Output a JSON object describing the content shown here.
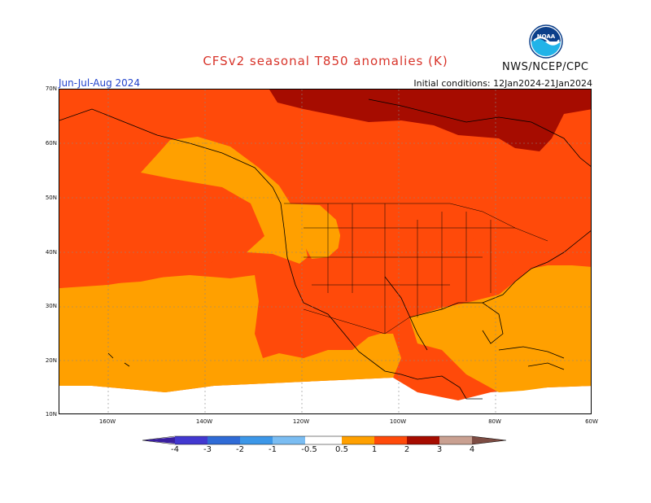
{
  "header": {
    "title": "CFSv2 seasonal T850 anomalies (K)",
    "period": "Jun-Jul-Aug 2024",
    "initial_conditions": "Initial conditions: 12Jan2024-21Jan2024",
    "agency": "NWS/NCEP/CPC",
    "logo_text": "NOAA"
  },
  "map": {
    "lat_labels": [
      "70N",
      "60N",
      "50N",
      "40N",
      "30N",
      "20N",
      "10N"
    ],
    "lon_labels": [
      "160W",
      "140W",
      "120W",
      "100W",
      "80W",
      "60W"
    ]
  },
  "legend": {
    "labels": [
      "-4",
      "-3",
      "-2",
      "-1",
      "-0.5",
      "0.5",
      "1",
      "2",
      "3",
      "4"
    ],
    "colors": {
      "below_-4": "#3a1fa0",
      "-4_-3": "#4238d0",
      "-3_-2": "#2f6bd6",
      "-2_-1": "#3c97e8",
      "-1_-0.5": "#7bbdf2",
      "-0.5_0.5": "#ffffff",
      "0.5_1": "#ffa000",
      "1_2": "#ff4a0a",
      "2_3": "#a60c00",
      "3_4": "#c9a091",
      "above_4": "#7d4c43"
    }
  }
}
